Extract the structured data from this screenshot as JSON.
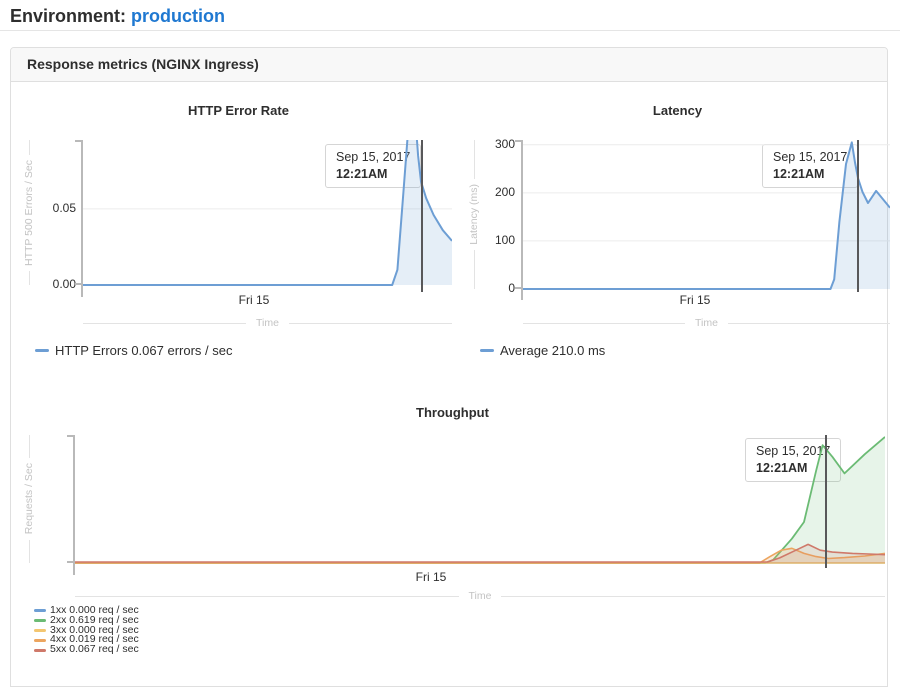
{
  "header": {
    "label": "Environment:",
    "environment": "production"
  },
  "panel": {
    "title": "Response metrics (NGINX Ingress)"
  },
  "colors": {
    "link_blue": "#1f78d1",
    "blue": "#6d9ed4",
    "green": "#6bbb74",
    "yellow": "#f3c671",
    "orange": "#eca55f",
    "red": "#cf796a",
    "crosshair": "#58585a",
    "grid": "#ececec"
  },
  "chart_data": [
    {
      "type": "area",
      "title": "HTTP Error Rate",
      "ylabel": "HTTP 500 Errors / Sec",
      "xlabel": "Time",
      "xticks": [
        "Fri 15"
      ],
      "ylim": [
        0,
        0.0953
      ],
      "gridlines": [
        0.05
      ],
      "grid_color": "#ececec",
      "ytick_labels": [
        "0.05",
        "0.00"
      ],
      "tooltip": {
        "date": "Sep 15, 2017",
        "time": "12:21AM"
      },
      "legend": [
        {
          "label": "HTTP Errors 0.067 errors / sec",
          "color": "#6d9ed4"
        }
      ],
      "series": [
        {
          "name": "HTTP Errors",
          "color": "#6d9ed4",
          "fill": "rgba(109,158,212,0.18)",
          "w": 2,
          "points": [
            [
              0,
              0
            ],
            [
              0.838,
              0
            ],
            [
              0.852,
              0.01
            ],
            [
              0.868,
              0.06
            ],
            [
              0.882,
              0.105
            ],
            [
              0.893,
              0.125
            ],
            [
              0.9,
              0.112
            ],
            [
              0.908,
              0.085
            ],
            [
              0.916,
              0.068
            ],
            [
              0.93,
              0.057
            ],
            [
              0.95,
              0.046
            ],
            [
              0.975,
              0.036
            ],
            [
              1,
              0.029
            ]
          ]
        }
      ]
    },
    {
      "type": "area",
      "title": "Latency",
      "ylabel": "Latency (ms)",
      "xlabel": "Time",
      "xticks": [
        "Fri 15"
      ],
      "ylim": [
        0,
        310
      ],
      "gridlines": [
        100,
        200,
        300
      ],
      "grid_color": "#ececec",
      "ytick_labels": [
        "300",
        "200",
        "100",
        "0"
      ],
      "tooltip": {
        "date": "Sep 15, 2017",
        "time": "12:21AM"
      },
      "legend": [
        {
          "label": "Average 210.0 ms",
          "color": "#6d9ed4"
        }
      ],
      "series": [
        {
          "name": "Average",
          "color": "#6d9ed4",
          "fill": "rgba(109,158,212,0.18)",
          "w": 2,
          "points": [
            [
              0,
              0
            ],
            [
              0.838,
              0
            ],
            [
              0.848,
              20
            ],
            [
              0.862,
              140
            ],
            [
              0.88,
              260
            ],
            [
              0.896,
              305
            ],
            [
              0.905,
              262
            ],
            [
              0.913,
              230
            ],
            [
              0.925,
              202
            ],
            [
              0.94,
              179
            ],
            [
              0.962,
              204
            ],
            [
              1,
              169
            ]
          ]
        }
      ]
    },
    {
      "type": "area",
      "title": "Throughput",
      "ylabel": "Requests / Sec",
      "xlabel": "Time",
      "xticks": [
        "Fri 15"
      ],
      "ylim": [
        0,
        1
      ],
      "gridlines": [],
      "grid_color": "#ececec",
      "ytick_labels": [],
      "tooltip": {
        "date": "Sep 15, 2017",
        "time": "12:21AM"
      },
      "legend": [
        {
          "label": "1xx 0.000 req / sec",
          "color": "#6d9ed4"
        },
        {
          "label": "2xx 0.619 req / sec",
          "color": "#6bbb74"
        },
        {
          "label": "3xx 0.000 req / sec",
          "color": "#f3c671"
        },
        {
          "label": "4xx 0.019 req / sec",
          "color": "#eca55f"
        },
        {
          "label": "5xx 0.067 req / sec",
          "color": "#cf796a"
        }
      ],
      "series": [
        {
          "name": "1xx",
          "color": "#6d9ed4",
          "fill": "none",
          "w": 1.5,
          "points": [
            [
              0,
              0
            ],
            [
              1,
              0
            ]
          ]
        },
        {
          "name": "2xx",
          "color": "#6bbb74",
          "fill": "rgba(107,187,116,0.16)",
          "w": 1.8,
          "points": [
            [
              0,
              0
            ],
            [
              0.852,
              0
            ],
            [
              0.862,
              0.025
            ],
            [
              0.885,
              0.19
            ],
            [
              0.9,
              0.32
            ],
            [
              0.915,
              0.72
            ],
            [
              0.923,
              0.92
            ],
            [
              0.935,
              0.83
            ],
            [
              0.95,
              0.7
            ],
            [
              0.975,
              0.85
            ],
            [
              1,
              0.985
            ]
          ]
        },
        {
          "name": "3xx",
          "color": "#f3c671",
          "fill": "none",
          "w": 1.5,
          "points": [
            [
              0,
              0
            ],
            [
              1,
              0
            ]
          ]
        },
        {
          "name": "4xx",
          "color": "#eca55f",
          "fill": "rgba(236,165,95,0.22)",
          "w": 1.6,
          "points": [
            [
              0,
              0
            ],
            [
              0.845,
              0
            ],
            [
              0.858,
              0.05
            ],
            [
              0.872,
              0.1
            ],
            [
              0.885,
              0.115
            ],
            [
              0.9,
              0.075
            ],
            [
              0.915,
              0.05
            ],
            [
              0.93,
              0.035
            ],
            [
              0.95,
              0.042
            ],
            [
              0.975,
              0.055
            ],
            [
              1,
              0.075
            ]
          ]
        },
        {
          "name": "5xx",
          "color": "#cf796a",
          "fill": "rgba(207,121,106,0.15)",
          "w": 1.6,
          "points": [
            [
              0,
              0.008
            ],
            [
              0.855,
              0.008
            ],
            [
              0.87,
              0.04
            ],
            [
              0.89,
              0.1
            ],
            [
              0.905,
              0.145
            ],
            [
              0.92,
              0.1
            ],
            [
              0.935,
              0.085
            ],
            [
              0.96,
              0.075
            ],
            [
              0.98,
              0.07
            ],
            [
              1,
              0.065
            ]
          ]
        }
      ]
    }
  ]
}
